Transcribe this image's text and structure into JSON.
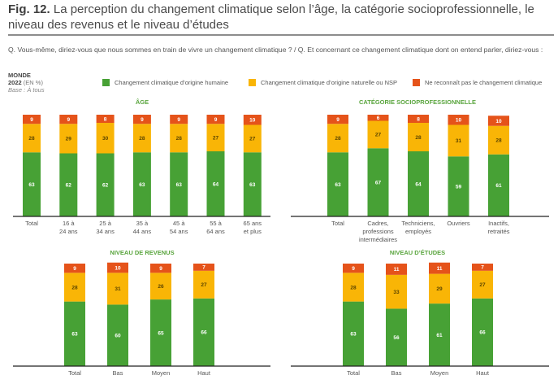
{
  "header": {
    "fig_number": "Fig. 12.",
    "title": "La perception du changement climatique selon l’âge, la catégorie socioprofessionnelle, le niveau des revenus et le niveau d’études"
  },
  "question": "Q. Vous-même, diriez-vous que nous sommes en train de vivre un changement climatique ?  / Q. Et concernant ce changement climatique dont on entend parler, diriez-vous :",
  "meta": {
    "region": "MONDE",
    "year": "2022",
    "unit": "(EN %)",
    "base": "Base : À tous"
  },
  "colors": {
    "human": "#47a135",
    "natural": "#f9b506",
    "denial": "#e5531a",
    "title_green": "#5aa53e"
  },
  "legend": [
    {
      "key": "human",
      "label": "Changement climatique d’origine humaine",
      "color": "#47a135"
    },
    {
      "key": "natural",
      "label": "Changement climatique d’origine naturelle ou NSP",
      "color": "#f9b506"
    },
    {
      "key": "denial",
      "label": "Ne reconnaît pas le changement climatique",
      "color": "#e5531a"
    }
  ],
  "chart_data": [
    {
      "type": "bar",
      "stacked": true,
      "title": "ÂGE",
      "categories": [
        [
          "Total"
        ],
        [
          "16 à",
          "24 ans"
        ],
        [
          "25 à",
          "34 ans"
        ],
        [
          "35 à",
          "44 ans"
        ],
        [
          "45 à",
          "54 ans"
        ],
        [
          "55 à",
          "64 ans"
        ],
        [
          "65 ans",
          "et plus"
        ]
      ],
      "series": [
        {
          "name": "Changement climatique d’origine humaine",
          "key": "human",
          "values": [
            63,
            62,
            62,
            63,
            63,
            64,
            63
          ]
        },
        {
          "name": "Changement climatique d’origine naturelle ou NSP",
          "key": "natural",
          "values": [
            28,
            29,
            30,
            28,
            28,
            27,
            27
          ]
        },
        {
          "name": "Ne reconnaît pas le changement climatique",
          "key": "denial",
          "values": [
            9,
            9,
            8,
            9,
            9,
            9,
            10
          ]
        }
      ],
      "ylim": [
        0,
        100
      ],
      "xlabel": "",
      "ylabel": ""
    },
    {
      "type": "bar",
      "stacked": true,
      "title": "CATÉGORIE SOCIOPROFESSIONNELLE",
      "categories": [
        [
          "Total"
        ],
        [
          "Cadres,",
          "professions",
          "intermédiaires"
        ],
        [
          "Techniciens,",
          "employés"
        ],
        [
          "Ouvriers"
        ],
        [
          "Inactifs,",
          "retraités"
        ]
      ],
      "series": [
        {
          "name": "Changement climatique d’origine humaine",
          "key": "human",
          "values": [
            63,
            67,
            64,
            59,
            61
          ]
        },
        {
          "name": "Changement climatique d’origine naturelle ou NSP",
          "key": "natural",
          "values": [
            28,
            27,
            28,
            31,
            28
          ]
        },
        {
          "name": "Ne reconnaît pas le changement climatique",
          "key": "denial",
          "values": [
            9,
            6,
            8,
            10,
            10
          ]
        }
      ],
      "ylim": [
        0,
        100
      ],
      "xlabel": "",
      "ylabel": ""
    },
    {
      "type": "bar",
      "stacked": true,
      "title": "NIVEAU DE REVENUS",
      "categories": [
        [
          "Total"
        ],
        [
          "Bas"
        ],
        [
          "Moyen"
        ],
        [
          "Haut"
        ]
      ],
      "series": [
        {
          "name": "Changement climatique d’origine humaine",
          "key": "human",
          "values": [
            63,
            60,
            65,
            66
          ]
        },
        {
          "name": "Changement climatique d’origine naturelle ou NSP",
          "key": "natural",
          "values": [
            28,
            31,
            26,
            27
          ]
        },
        {
          "name": "Ne reconnaît pas le changement climatique",
          "key": "denial",
          "values": [
            9,
            10,
            9,
            7
          ]
        }
      ],
      "ylim": [
        0,
        100
      ],
      "xlabel": "",
      "ylabel": ""
    },
    {
      "type": "bar",
      "stacked": true,
      "title": "NIVEAU D’ÉTUDES",
      "categories": [
        [
          "Total"
        ],
        [
          "Bas"
        ],
        [
          "Moyen"
        ],
        [
          "Haut"
        ]
      ],
      "series": [
        {
          "name": "Changement climatique d’origine humaine",
          "key": "human",
          "values": [
            63,
            56,
            61,
            66
          ]
        },
        {
          "name": "Changement climatique d’origine naturelle ou NSP",
          "key": "natural",
          "values": [
            28,
            33,
            29,
            27
          ]
        },
        {
          "name": "Ne reconnaît pas le changement climatique",
          "key": "denial",
          "values": [
            9,
            11,
            11,
            7
          ]
        }
      ],
      "ylim": [
        0,
        100
      ],
      "xlabel": "",
      "ylabel": ""
    }
  ]
}
